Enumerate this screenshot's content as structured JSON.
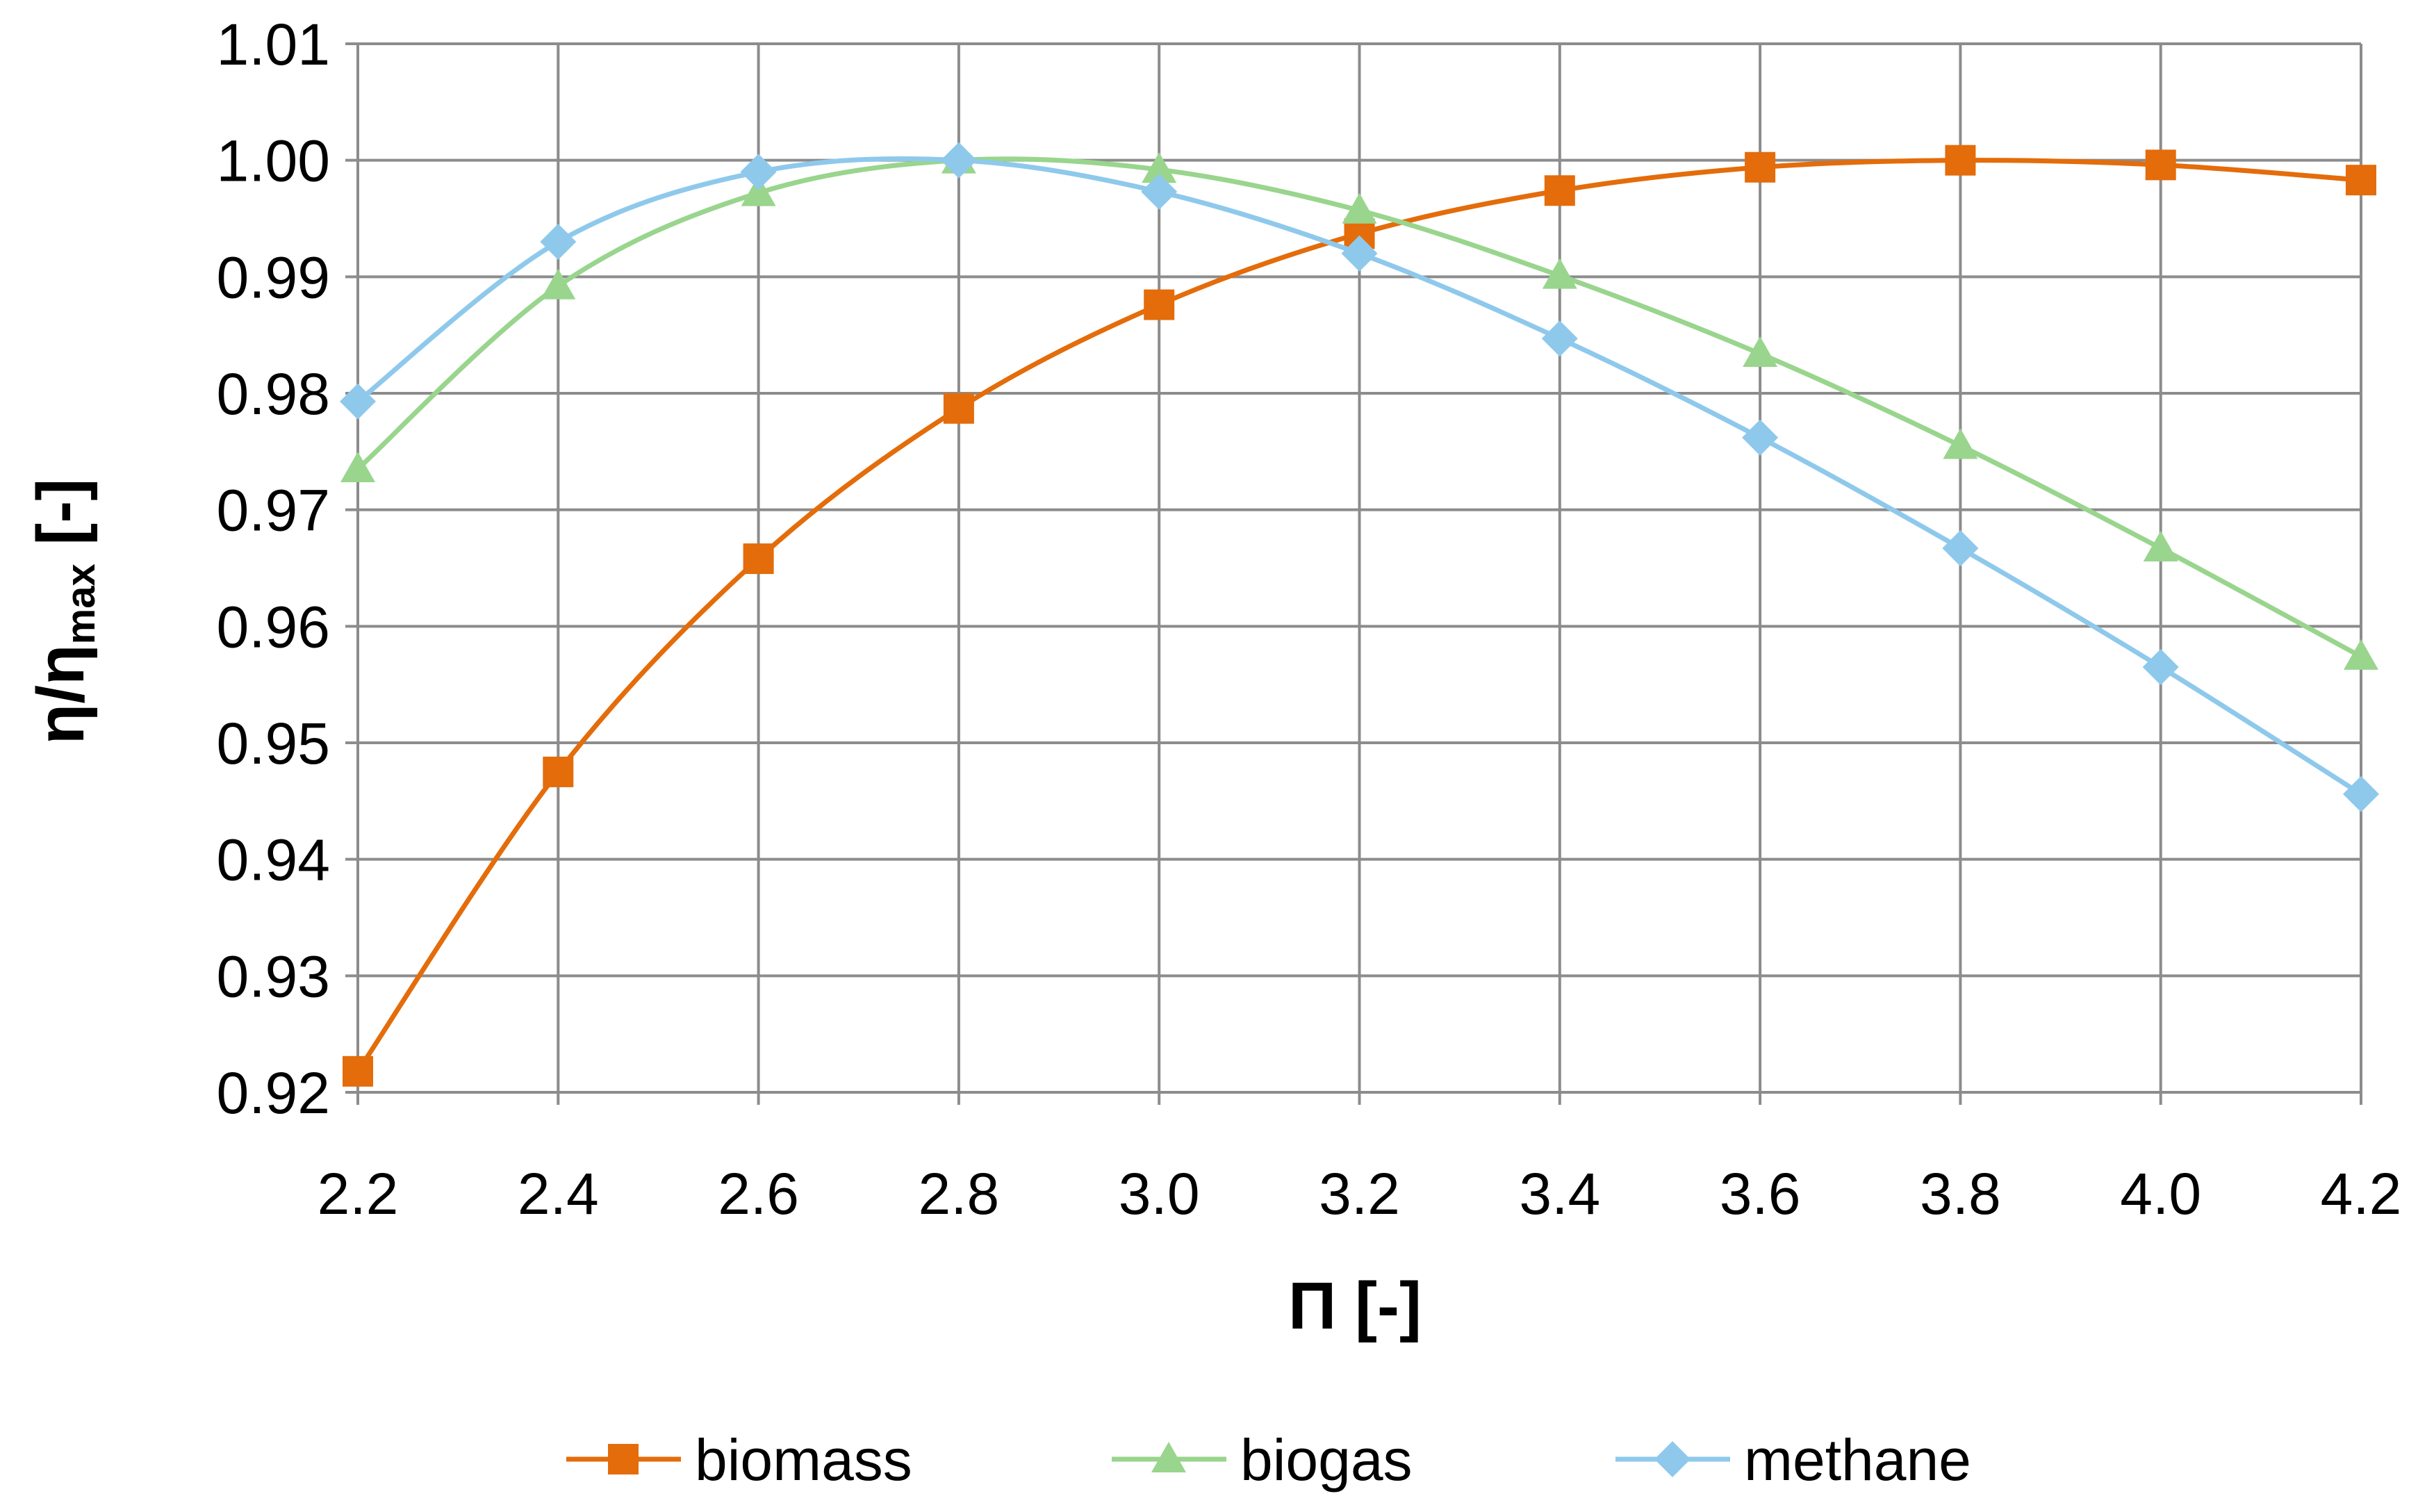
{
  "chart_data": {
    "type": "line",
    "title": "",
    "xlabel": "Π [-]",
    "ylabel": "η/ηmax [-]",
    "ylabel_main": "η/η",
    "ylabel_sub": "max",
    "ylabel_tail": " [-]",
    "x": [
      2.2,
      2.4,
      2.6,
      2.8,
      3.0,
      3.2,
      3.4,
      3.6,
      3.8,
      4.0,
      4.2
    ],
    "x_tick_labels": [
      "2.2",
      "2.4",
      "2.6",
      "2.8",
      "3.0",
      "3.2",
      "3.4",
      "3.6",
      "3.8",
      "4.0",
      "4.2"
    ],
    "y_tick_labels": [
      "0.92",
      "0.93",
      "0.94",
      "0.95",
      "0.96",
      "0.97",
      "0.98",
      "0.99",
      "1.00",
      "1.01"
    ],
    "xlim": [
      2.2,
      4.2
    ],
    "ylim": [
      0.92,
      1.01
    ],
    "grid": true,
    "legend_position": "bottom",
    "series": [
      {
        "name": "biomass",
        "color": "#e46c0a",
        "marker": "square",
        "values": [
          0.9218,
          0.9475,
          0.9658,
          0.9787,
          0.9876,
          0.9937,
          0.9974,
          0.9994,
          1.0,
          0.9996,
          0.9983
        ]
      },
      {
        "name": "biogas",
        "color": "#99d58d",
        "marker": "triangle",
        "values": [
          0.9735,
          0.9892,
          0.9972,
          1.0,
          0.9992,
          0.9957,
          0.9901,
          0.9834,
          0.9755,
          0.9667,
          0.9574
        ]
      },
      {
        "name": "methane",
        "color": "#8ec9ec",
        "marker": "diamond",
        "values": [
          0.9793,
          0.993,
          0.999,
          1.0,
          0.9973,
          0.992,
          0.9847,
          0.9762,
          0.9667,
          0.9565,
          0.9456
        ]
      }
    ]
  }
}
